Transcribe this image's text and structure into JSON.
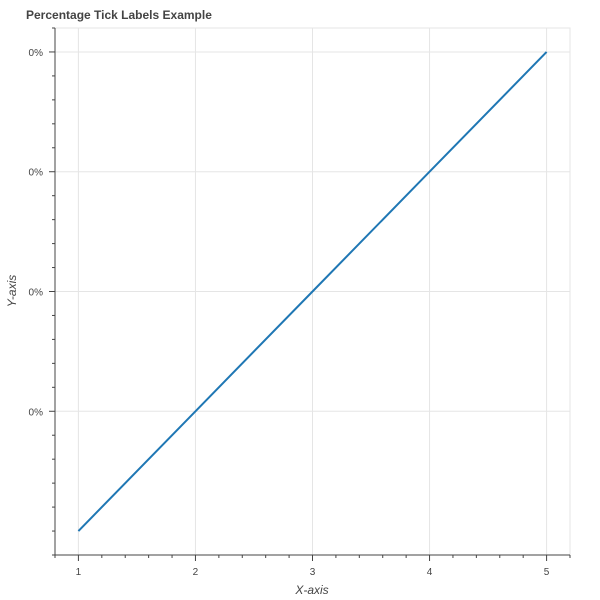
{
  "chart_data": {
    "type": "line",
    "title": "Percentage Tick Labels Example",
    "xlabel": "X-axis",
    "ylabel": "Y-axis",
    "x": [
      1,
      2,
      3,
      4,
      5
    ],
    "series": [
      {
        "values": [
          0.01,
          0.02,
          0.03,
          0.04,
          0.05
        ]
      }
    ],
    "xlim": [
      0.8,
      5.2
    ],
    "ylim": [
      0.008,
      0.052
    ],
    "x_ticks": [
      1,
      2,
      3,
      4,
      5
    ],
    "x_tick_labels": [
      "1",
      "2",
      "3",
      "4",
      "5"
    ],
    "y_ticks": [
      0.02,
      0.03,
      0.04,
      0.05
    ],
    "y_tick_labels": [
      "0%",
      "0%",
      "0%",
      "0%"
    ],
    "grid": true,
    "line_color": "#1f77b4"
  }
}
